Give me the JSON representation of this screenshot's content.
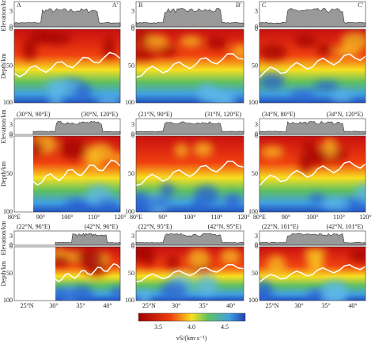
{
  "rows": [
    {
      "panels": [
        {
          "left": "A",
          "right": "A'"
        },
        {
          "left": "B",
          "right": "B'"
        },
        {
          "left": "C",
          "right": "C'"
        }
      ]
    },
    {
      "panels": [
        {
          "left": "(30°N, 90°E)",
          "right": "(30°N, 120°E)"
        },
        {
          "left": "(21°N, 90°E)",
          "right": "(31°N, 120°E)"
        },
        {
          "left": "(34°N, 80°E)",
          "right": "(34°N, 120°E)"
        }
      ],
      "xticks": [
        "80°E",
        "90°",
        "100°",
        "110°",
        "120°"
      ]
    },
    {
      "panels": [
        {
          "left": "(22°N, 96°E)",
          "right": "(42°N, 96°E)"
        },
        {
          "left": "(22°N, 95°E)",
          "right": "(42°N, 95°E)"
        },
        {
          "left": "(22°N, 101°E)",
          "right": "(42°N, 101°E)"
        }
      ],
      "xticks": [
        "25°N",
        "30°",
        "35°",
        "40°"
      ]
    }
  ],
  "y_axis": {
    "elevation": "Elevation/km",
    "depth": "Depth/km",
    "elevation_ticks": [
      "0",
      "3"
    ],
    "depth_ticks": [
      "0",
      "50",
      "100"
    ]
  },
  "colorbar": {
    "ticks": [
      "3.5",
      "4.0",
      "4.5"
    ],
    "label": "vS/(km·s⁻¹)"
  }
}
